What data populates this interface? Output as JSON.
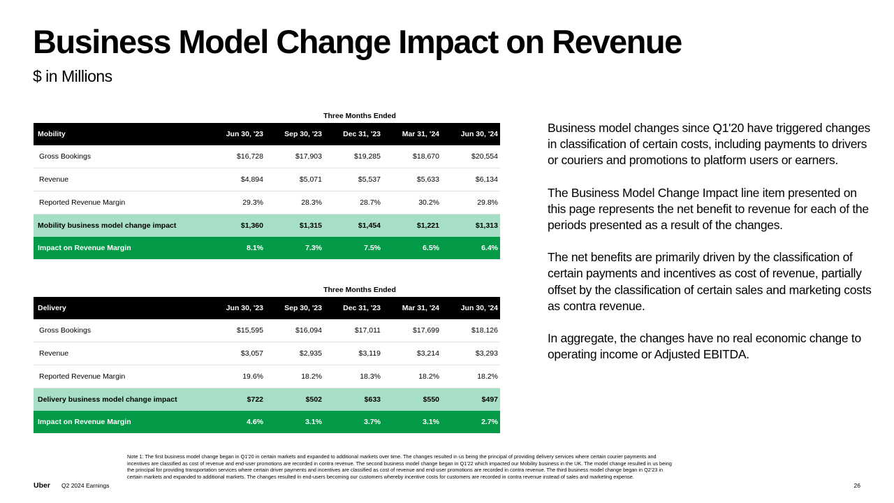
{
  "title": "Business Model Change Impact on Revenue",
  "subtitle": "$ in Millions",
  "columns": [
    "Jun 30, '23",
    "Sep 30, '23",
    "Dec 31, '23",
    "Mar 31, '24",
    "Jun 30, '24"
  ],
  "tables": [
    {
      "caption": "Three Months Ended",
      "segment": "Mobility",
      "rows": [
        {
          "label": "Gross Bookings",
          "values": [
            "$16,728",
            "$17,903",
            "$19,285",
            "$18,670",
            "$20,554"
          ]
        },
        {
          "label": "Revenue",
          "values": [
            "$4,894",
            "$5,071",
            "$5,537",
            "$5,633",
            "$6,134"
          ]
        },
        {
          "label": "Reported Revenue Margin",
          "values": [
            "29.3%",
            "28.3%",
            "28.7%",
            "30.2%",
            "29.8%"
          ]
        },
        {
          "label": "Mobility business model change impact",
          "values": [
            "$1,360",
            "$1,315",
            "$1,454",
            "$1,221",
            "$1,313"
          ]
        },
        {
          "label": "Impact on Revenue Margin",
          "values": [
            "8.1%",
            "7.3%",
            "7.5%",
            "6.5%",
            "6.4%"
          ]
        }
      ]
    },
    {
      "caption": "Three Months Ended",
      "segment": "Delivery",
      "rows": [
        {
          "label": "Gross Bookings",
          "values": [
            "$15,595",
            "$16,094",
            "$17,011",
            "$17,699",
            "$18,126"
          ]
        },
        {
          "label": "Revenue",
          "values": [
            "$3,057",
            "$2,935",
            "$3,119",
            "$3,214",
            "$3,293"
          ]
        },
        {
          "label": "Reported Revenue Margin",
          "values": [
            "19.6%",
            "18.2%",
            "18.3%",
            "18.2%",
            "18.2%"
          ]
        },
        {
          "label": "Delivery business model change impact",
          "values": [
            "$722",
            "$502",
            "$633",
            "$550",
            "$497"
          ]
        },
        {
          "label": "Impact on Revenue Margin",
          "values": [
            "4.6%",
            "3.1%",
            "3.7%",
            "3.1%",
            "2.7%"
          ]
        }
      ]
    }
  ],
  "commentary": [
    "Business model changes since Q1'20 have triggered changes in classification of certain costs, including payments to drivers or couriers and promotions to platform users or earners.",
    "The Business Model Change Impact line item presented on this page represents the net benefit to revenue for each of the periods presented as a result of the changes.",
    "The net benefits are primarily driven by the classification of certain payments and incentives as cost of revenue, partially offset by the classification of certain sales and marketing costs as contra revenue.",
    "In aggregate, the changes have no real economic change to operating income or Adjusted EBITDA."
  ],
  "note": "Note 1: The first business model change began in Q1'20 in certain markets and expanded to additional markets over time. The changes resulted in us being the principal of providing delivery services where certain courier payments and incentives are classified as cost of revenue and end-user promotions are recorded in contra revenue. The second business model change began in Q1'22 which impacted our Mobility business in the UK. The model change resulted in us being the principal for providing transportation services where certain driver payments and incentives are classified as cost of revenue and end-user promotions are recorded in contra revenue. The third business model change began in Q2'23 in certain markets and expanded to additional markets. The changes resulted in end-users becoming our customers whereby incentive costs for customers are recorded in contra revenue instead of sales and marketing expense.",
  "footer": {
    "brand": "Uber",
    "report": "Q2 2024 Earnings",
    "page": "26"
  }
}
